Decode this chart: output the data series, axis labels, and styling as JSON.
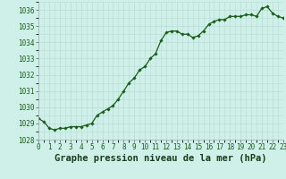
{
  "x_values": [
    0,
    0.5,
    1,
    1.5,
    2,
    2.5,
    3,
    3.5,
    4,
    4.5,
    5,
    5.5,
    6,
    6.5,
    7,
    7.5,
    8,
    8.5,
    9,
    9.5,
    10,
    10.5,
    11,
    11.5,
    12,
    12.5,
    13,
    13.5,
    14,
    14.5,
    15,
    15.5,
    16,
    16.5,
    17,
    17.5,
    18,
    18.5,
    19,
    19.5,
    20,
    20.5,
    21,
    21.5,
    22,
    22.5,
    23
  ],
  "y_values": [
    1029.3,
    1029.1,
    1028.7,
    1028.6,
    1028.7,
    1028.7,
    1028.8,
    1028.8,
    1028.8,
    1028.9,
    1029.0,
    1029.5,
    1029.7,
    1029.9,
    1030.1,
    1030.5,
    1031.0,
    1031.5,
    1031.8,
    1032.3,
    1032.5,
    1033.0,
    1033.3,
    1034.1,
    1034.6,
    1034.7,
    1034.7,
    1034.5,
    1034.5,
    1034.3,
    1034.4,
    1034.7,
    1035.1,
    1035.3,
    1035.4,
    1035.4,
    1035.6,
    1035.6,
    1035.6,
    1035.7,
    1035.7,
    1035.6,
    1036.1,
    1036.2,
    1035.8,
    1035.6,
    1035.5
  ],
  "line_color": "#1a5c1a",
  "marker_color": "#1a5c1a",
  "bg_color": "#cef0e8",
  "grid_color": "#b8ddd6",
  "xlim": [
    0,
    23
  ],
  "ylim": [
    1028,
    1036.5
  ],
  "yticks": [
    1028,
    1029,
    1030,
    1031,
    1032,
    1033,
    1034,
    1035,
    1036
  ],
  "xticks": [
    0,
    1,
    2,
    3,
    4,
    5,
    6,
    7,
    8,
    9,
    10,
    11,
    12,
    13,
    14,
    15,
    16,
    17,
    18,
    19,
    20,
    21,
    22,
    23
  ],
  "xlabel": "Graphe pression niveau de la mer (hPa)",
  "tick_fontsize": 5.5,
  "label_fontsize": 7.5
}
